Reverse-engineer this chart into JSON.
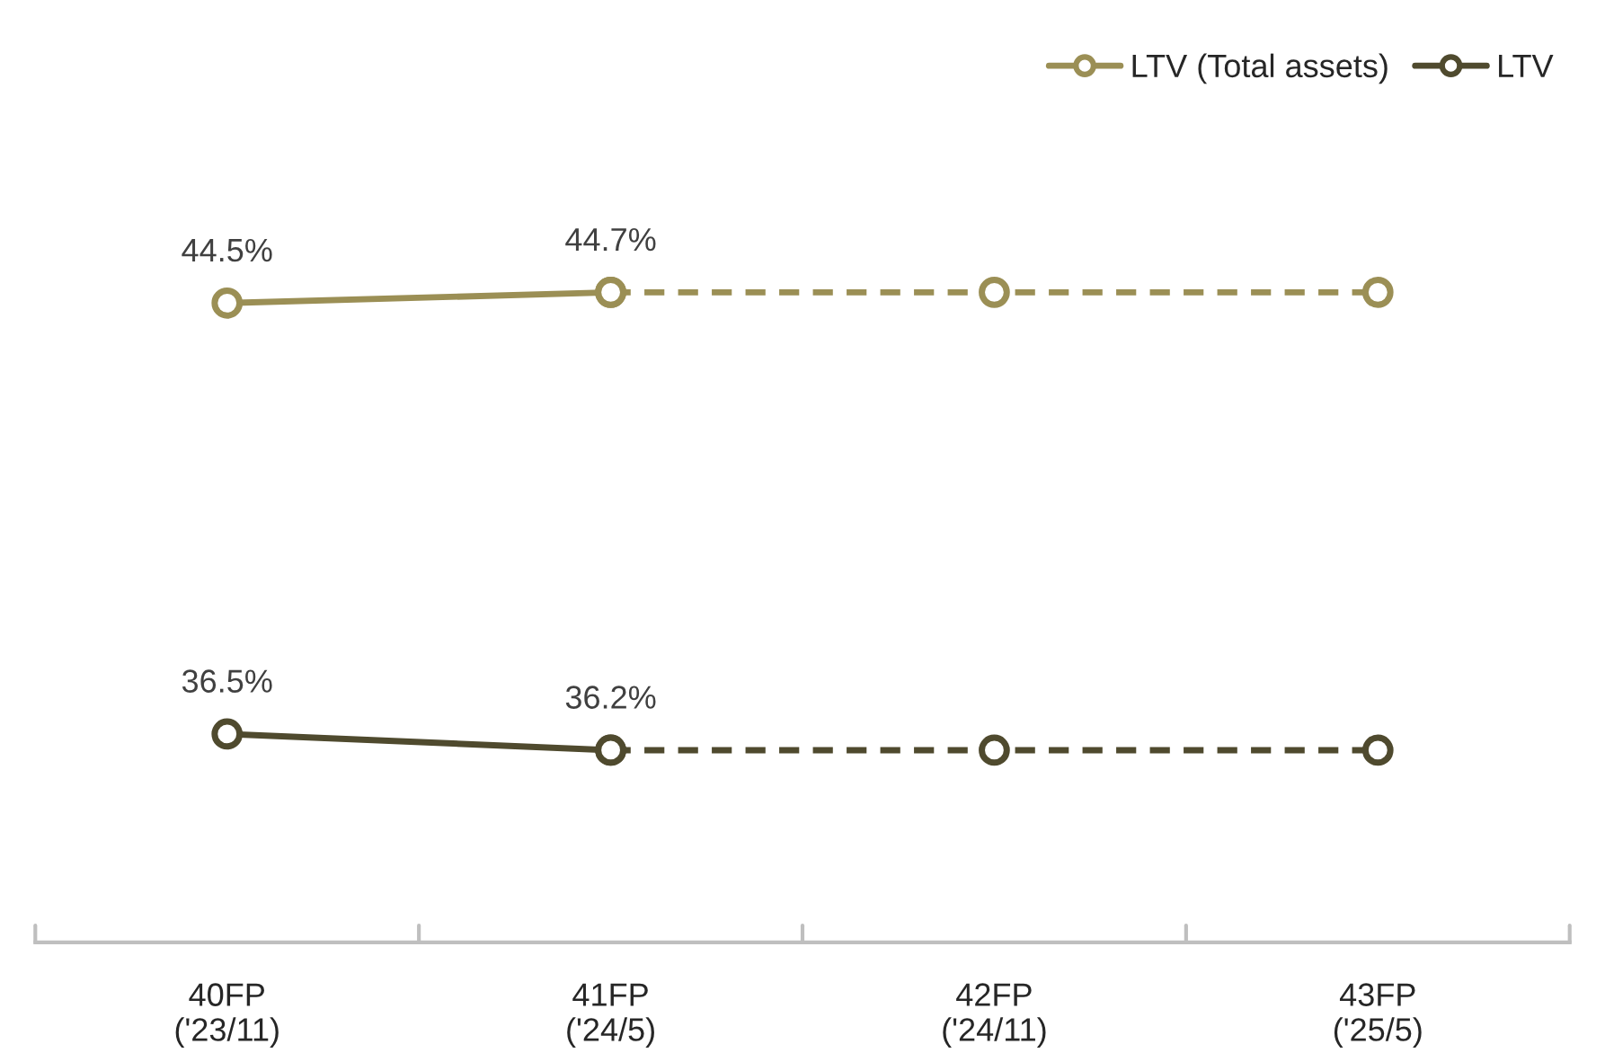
{
  "chart_data": {
    "type": "line",
    "categories": [
      "40FP\n('23/11)",
      "41FP\n('24/5)",
      "42FP\n('24/11)",
      "43FP\n('25/5)"
    ],
    "series": [
      {
        "name": "LTV (Total assets)",
        "color": "#9b8f55",
        "values": [
          44.5,
          44.7,
          null,
          null
        ],
        "value_labels": [
          "44.5%",
          "44.7%",
          null,
          null
        ],
        "line_style": "solid"
      },
      {
        "color": "#9b8f55",
        "values": [
          null,
          44.7,
          44.7,
          44.7
        ],
        "line_style": "dashed"
      },
      {
        "name": "LTV",
        "color": "#4f4a2e",
        "values": [
          36.5,
          36.2,
          null,
          null
        ],
        "value_labels": [
          "36.5%",
          "36.2%",
          null,
          null
        ],
        "line_style": "solid"
      },
      {
        "color": "#4f4a2e",
        "values": [
          null,
          36.2,
          36.2,
          36.2
        ],
        "line_style": "dashed"
      }
    ],
    "marker": "circle",
    "legend": "top right",
    "grid": false,
    "tick_labels": "x"
  }
}
